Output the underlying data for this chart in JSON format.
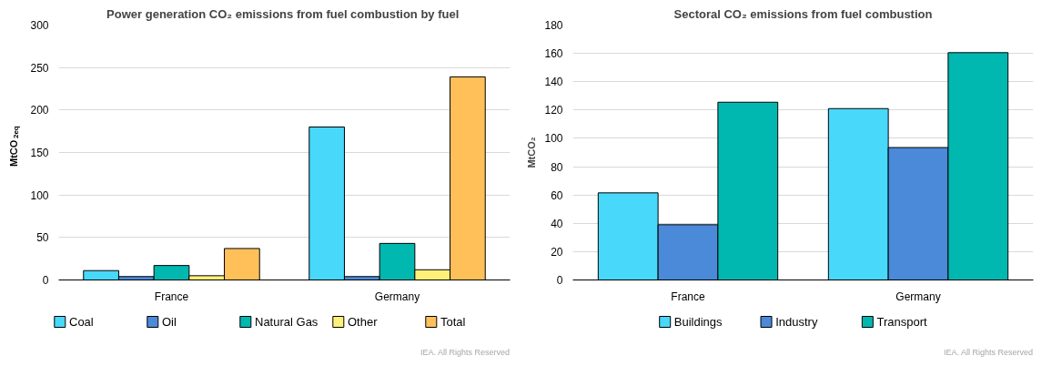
{
  "chart_data": [
    {
      "type": "bar",
      "title": "Power  generation CO₂ emissions from fuel combustion by fuel",
      "ylabel": "MtCO$_{2eq}$",
      "categories": [
        "France",
        "Germany"
      ],
      "series": [
        {
          "name": "Coal",
          "color": "#48d8fa",
          "values": [
            11,
            180
          ]
        },
        {
          "name": "Oil",
          "color": "#4a8ad8",
          "values": [
            4,
            4
          ]
        },
        {
          "name": "Natural Gas",
          "color": "#00b8b0",
          "values": [
            17,
            43
          ]
        },
        {
          "name": "Other",
          "color": "#fff07a",
          "values": [
            5,
            12
          ]
        },
        {
          "name": "Total",
          "color": "#ffc05a",
          "values": [
            37,
            239
          ]
        }
      ],
      "ylim": [
        0,
        300
      ],
      "yticks": [
        0,
        50,
        100,
        150,
        200,
        250,
        300
      ],
      "grid": "y",
      "legend": "bottom",
      "annotations": [
        "IEA. All Rights Reserved"
      ]
    },
    {
      "type": "bar",
      "title": "Sectoral CO₂ emissions from fuel combustion",
      "ylabel": "MtCO₂",
      "categories": [
        "France",
        "Germany"
      ],
      "series": [
        {
          "name": "Buildings",
          "color": "#48d8fa",
          "values": [
            61.5,
            121
          ]
        },
        {
          "name": "Industry",
          "color": "#4a8ad8",
          "values": [
            39,
            93.5
          ]
        },
        {
          "name": "Transport",
          "color": "#00b8b0",
          "values": [
            125.5,
            160.5
          ]
        }
      ],
      "ylim": [
        0,
        180
      ],
      "yticks": [
        0,
        20,
        40,
        60,
        80,
        100,
        120,
        140,
        160,
        180
      ],
      "grid": "y",
      "legend": "bottom",
      "annotations": [
        "IEA. All Rights Reserved"
      ]
    }
  ]
}
